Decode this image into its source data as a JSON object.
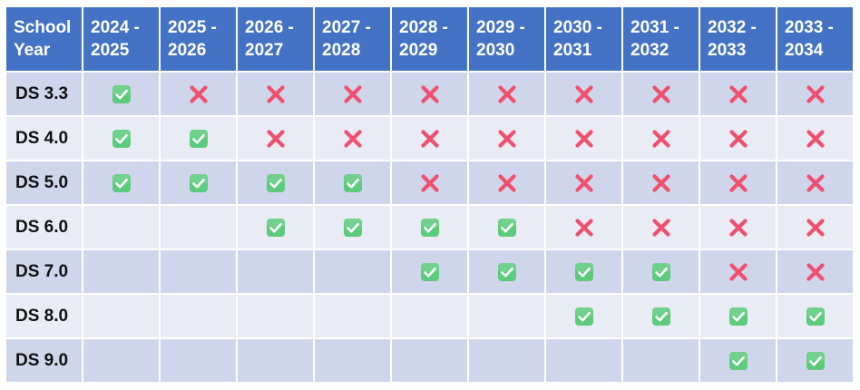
{
  "table": {
    "corner_header": "School\nYear",
    "columns": [
      "2024 -\n2025",
      "2025 -\n2026",
      "2026 -\n2027",
      "2027 -\n2028",
      "2028 -\n2029",
      "2029 -\n2030",
      "2030 -\n2031",
      "2031 -\n2032",
      "2032 -\n2033",
      "2033 -\n2034"
    ],
    "rows": [
      {
        "label": "DS 3.3",
        "cells": [
          "check",
          "cross",
          "cross",
          "cross",
          "cross",
          "cross",
          "cross",
          "cross",
          "cross",
          "cross"
        ]
      },
      {
        "label": "DS 4.0",
        "cells": [
          "check",
          "check",
          "cross",
          "cross",
          "cross",
          "cross",
          "cross",
          "cross",
          "cross",
          "cross"
        ]
      },
      {
        "label": "DS 5.0",
        "cells": [
          "check",
          "check",
          "check",
          "check",
          "cross",
          "cross",
          "cross",
          "cross",
          "cross",
          "cross"
        ]
      },
      {
        "label": "DS 6.0",
        "cells": [
          "empty",
          "empty",
          "check",
          "check",
          "check",
          "check",
          "cross",
          "cross",
          "cross",
          "cross"
        ]
      },
      {
        "label": "DS 7.0",
        "cells": [
          "empty",
          "empty",
          "empty",
          "empty",
          "check",
          "check",
          "check",
          "check",
          "cross",
          "cross"
        ]
      },
      {
        "label": "DS 8.0",
        "cells": [
          "empty",
          "empty",
          "empty",
          "empty",
          "empty",
          "empty",
          "check",
          "check",
          "check",
          "check"
        ]
      },
      {
        "label": "DS 9.0",
        "cells": [
          "empty",
          "empty",
          "empty",
          "empty",
          "empty",
          "empty",
          "empty",
          "empty",
          "check",
          "check"
        ]
      }
    ],
    "icons": {
      "check": "check-mark-button-icon",
      "cross": "cross-mark-icon"
    }
  },
  "colors": {
    "header_bg": "#4472c4",
    "header_text": "#ffffff",
    "row_band_dark": "#cfd5ea",
    "row_band_light": "#e9ebf5",
    "check_green": "#5ccb7c",
    "cross_red": "#f0506e"
  }
}
